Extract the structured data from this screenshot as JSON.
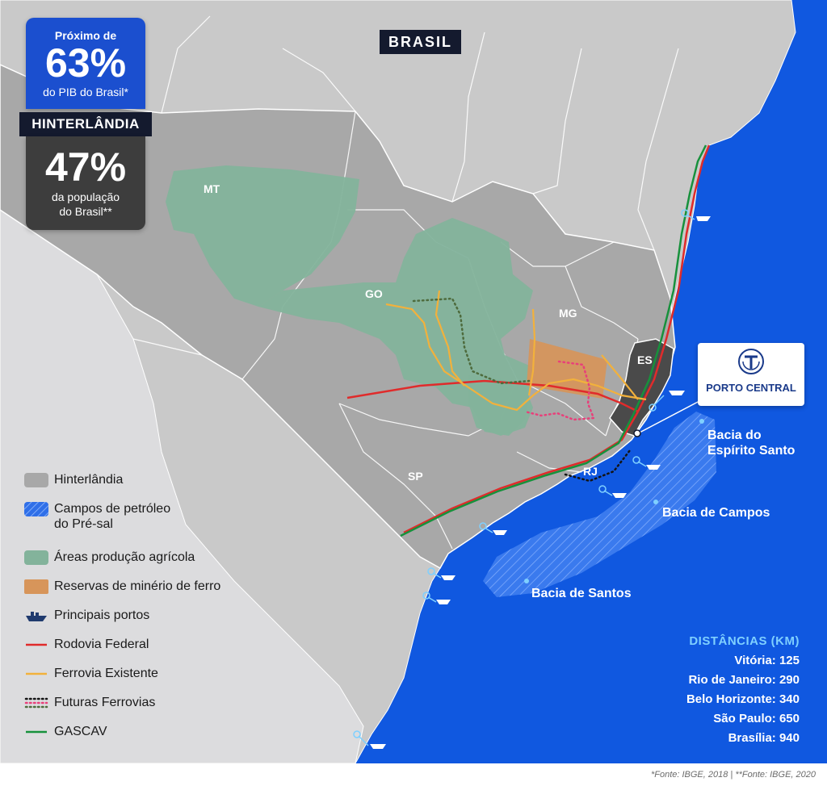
{
  "country_label": "BRASIL",
  "stats": {
    "gdp_top": "Próximo de",
    "gdp_value": "63%",
    "gdp_bottom": "do PIB do Brasil*",
    "region_tag": "HINTERLÂNDIA",
    "pop_value": "47%",
    "pop_line1": "da população",
    "pop_line2": "do Brasil**"
  },
  "states": [
    {
      "id": "mt",
      "label": "MT"
    },
    {
      "id": "go",
      "label": "GO"
    },
    {
      "id": "mg",
      "label": "MG"
    },
    {
      "id": "es",
      "label": "ES"
    },
    {
      "id": "sp",
      "label": "SP"
    },
    {
      "id": "rj",
      "label": "RJ"
    }
  ],
  "port_card": {
    "name": "PORTO CENTRAL"
  },
  "basins": {
    "espirito_santo_line1": "Bacia do",
    "espirito_santo_line2": "Espírito Santo",
    "campos": "Bacia de Campos",
    "santos": "Bacia de Santos"
  },
  "legend": [
    {
      "id": "hinterlandia",
      "label": "Hinterlândia"
    },
    {
      "id": "pre-sal",
      "label": "Campos de petróleo",
      "label2": "do Pré-sal"
    },
    {
      "id": "agricola",
      "label": "Áreas produção agrícola"
    },
    {
      "id": "minerio",
      "label": "Reservas de minério de ferro"
    },
    {
      "id": "portos",
      "label": "Principais portos"
    },
    {
      "id": "rodovia",
      "label": "Rodovia Federal"
    },
    {
      "id": "ferrovia",
      "label": "Ferrovia Existente"
    },
    {
      "id": "futuras",
      "label": "Futuras Ferrovias"
    },
    {
      "id": "gascav",
      "label": "GASCAV"
    }
  ],
  "distances": {
    "title": "DISTÂNCIAS (KM)",
    "rows": [
      {
        "city": "Vitória:",
        "km": "125"
      },
      {
        "city": "Rio de Janeiro:",
        "km": "290"
      },
      {
        "city": "Belo Horizonte:",
        "km": "340"
      },
      {
        "city": "São Paulo:",
        "km": "650"
      },
      {
        "city": "Brasília:",
        "km": "940"
      }
    ]
  },
  "footnote": "*Fonte: IBGE, 2018 | **Fonte: IBGE, 2020",
  "colors": {
    "ocean": "#1058e0",
    "land_outside": "#c9c9c9",
    "hinterland": "#a8a8a8",
    "agricultural": "#83b39b",
    "iron_ore": "#d7955a",
    "es_state": "#4a4a4a",
    "highway": "#e02b2b",
    "railway": "#f2b13c",
    "gascav": "#17913c"
  }
}
